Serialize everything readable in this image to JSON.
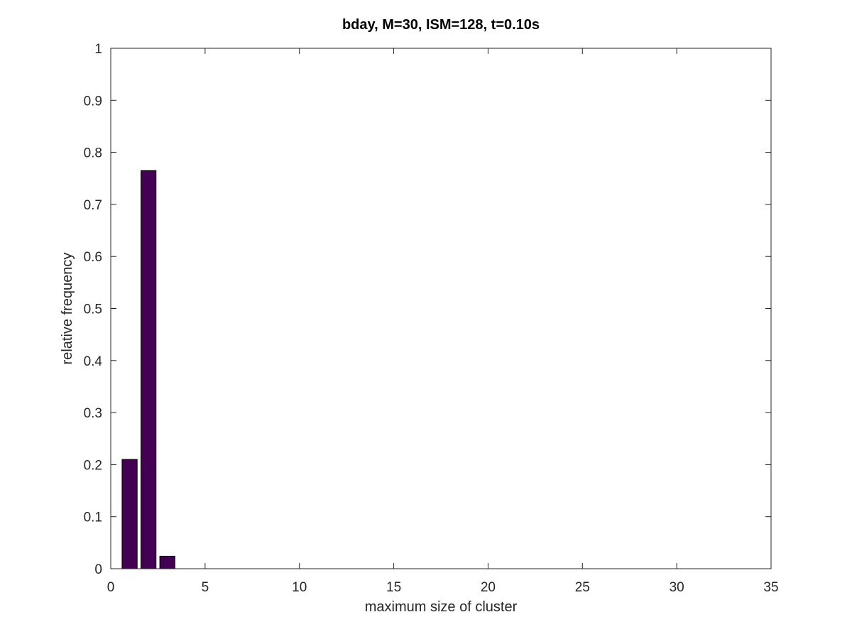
{
  "chart_data": {
    "type": "bar",
    "title": "bday, M=30, ISM=128, t=0.10s",
    "xlabel": "maximum size of cluster",
    "ylabel": "relative frequency",
    "x": [
      1,
      2,
      3
    ],
    "values": [
      0.21,
      0.765,
      0.024
    ],
    "xlim": [
      0,
      35
    ],
    "ylim": [
      0,
      1
    ],
    "xticks": [
      0,
      5,
      10,
      15,
      20,
      25,
      30,
      35
    ],
    "yticks": [
      0,
      0.1,
      0.2,
      0.3,
      0.4,
      0.5,
      0.6,
      0.7,
      0.8,
      0.9,
      1
    ],
    "bar_color": "#440154",
    "grid": false,
    "legend": "none"
  }
}
